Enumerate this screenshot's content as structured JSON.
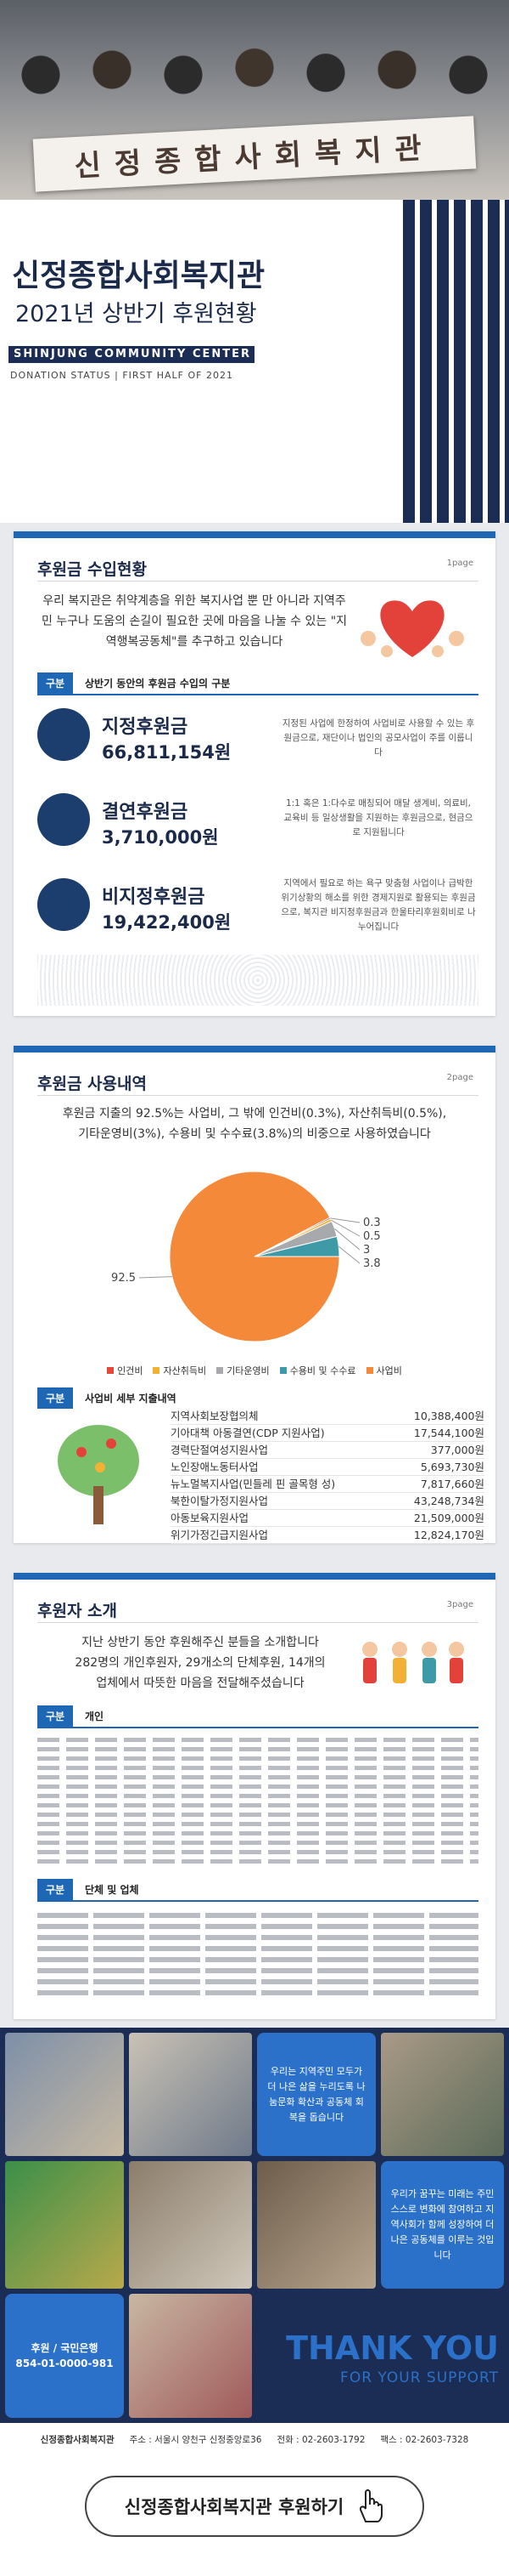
{
  "hero": {
    "sign": "신정종합사회복지관"
  },
  "header": {
    "title": "신정종합사회복지관",
    "subtitle": "2021년 상반기 후원현황",
    "english": "SHINJUNG COMMUNITY CENTER",
    "english_sub": "DONATION STATUS | FIRST HALF OF 2021"
  },
  "income": {
    "heading": "후원금 수입현황",
    "page": "1page",
    "intro": "우리 복지관은 취약계층을 위한 복지사업 뿐 만 아니라 지역주민 누구나 도움의 손길이 필요한 곳에 마음을 나눌 수 있는 \"지역행복공동체\"를 추구하고 있습니다",
    "badge": "구분",
    "badge_text": "상반기 동안의 후원금 수입의 구분",
    "items": [
      {
        "name": "지정후원금",
        "amount": "66,811,154원",
        "desc": "지정된 사업에 한정하여 사업비로 사용할 수 있는 후원금으로, 재단이나 법인의 공모사업이 주를 이룹니다"
      },
      {
        "name": "결연후원금",
        "amount": "3,710,000원",
        "desc": "1:1 혹은 1:다수로 매칭되어 매달 생계비, 의료비, 교육비 등 일상생활을 지원하는 후원금으로, 현금으로 지원됩니다"
      },
      {
        "name": "비지정후원금",
        "amount": "19,422,400원",
        "desc": "지역에서 필요로 하는 욕구 맞춤형 사업이나 급박한 위기상황의 해소를 위한 경제지원로 활용되는 후원금으로, 복지관 비지정후원금과 한울타리후원회비로 나누어집니다"
      }
    ]
  },
  "spending": {
    "heading": "후원금 사용내역",
    "page": "2page",
    "intro": "후원금 지출의 92.5%는 사업비, 그 밖에 인건비(0.3%), 자산취득비(0.5%), 기타운영비(3%), 수용비 및 수수료(3.8%)의 비중으로 사용하였습니다",
    "badge": "구분",
    "badge_text": "사업비 세부 지출내역",
    "table": {
      "rows": [
        [
          "지역사회보장협의체",
          "10,388,400원"
        ],
        [
          "기아대책 아동결연(CDP 지원사업)",
          "17,544,100원"
        ],
        [
          "경력단절여성지원사업",
          "377,000원"
        ],
        [
          "노인장애노동터사업",
          "5,693,730원"
        ],
        [
          "뉴노멀복지사업(민들레 핀 골목형 성)",
          "7,817,660원"
        ],
        [
          "북한이탈가정지원사업",
          "43,248,734원"
        ],
        [
          "아동보육지원사업",
          "21,509,000원"
        ],
        [
          "위기가정긴급지원사업",
          "12,824,170원"
        ]
      ]
    }
  },
  "chart_data": {
    "type": "pie",
    "categories": [
      "인건비",
      "자산취득비",
      "기타운영비",
      "수용비 및 수수료",
      "사업비"
    ],
    "values": [
      0.3,
      0.5,
      3,
      3.8,
      92.5
    ],
    "colors": [
      "#e5483a",
      "#f2b134",
      "#a7a9ac",
      "#3e9aa6",
      "#f5893a"
    ],
    "legend": "bottom"
  },
  "donors": {
    "heading": "후원자 소개",
    "page": "3page",
    "intro": "지난 상반기 동안 후원해주신 분들을 소개합니다 282명의 개인후원자, 29개소의 단체후원, 14개의 업체에서 따뜻한 마음을 전달해주셨습니다",
    "badge": "구분",
    "personal": "개인",
    "group": "단체 및 업체"
  },
  "gallery": {
    "mission": "우리는 지역주민 모두가 더 나은 삶을 누리도록 나눔문화 확산과 공동체 회복을 돕습니다",
    "vision": "우리가 꿈꾸는 미래는 주민 스스로 변화에 참여하고 지역사회가 함께 성장하여 더 나은 공동체를 이루는 것입니다",
    "bank_label": "후원 / 국민은행",
    "bank_account": "854-01-0000-981",
    "thanks": "THANK YOU",
    "thanks_sub": "FOR YOUR SUPPORT"
  },
  "footer": {
    "name": "신정종합사회복지관",
    "address": "주소 : 서울시 양천구 신정중앙로36",
    "phone": "전화 : 02-2603-1792",
    "fax": "팩스 : 02-2603-7328",
    "button": "신정종합사회복지관 후원하기"
  }
}
